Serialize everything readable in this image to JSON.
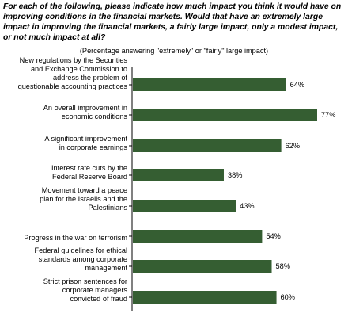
{
  "title": "For each of the following, please indicate how much impact you think it would have on improving conditions in the financial markets. Would that have an extremely large impact in improving the financial markets, a fairly large impact, only a modest impact, or not much impact at all?",
  "subtitle": "(Percentage answering \"extremely\" or \"fairly\" large impact)",
  "chart_data": {
    "type": "bar",
    "orientation": "horizontal",
    "categories": [
      [
        "New regulations by the Securities",
        "and Exchange Commission to",
        "address the problem of",
        "questionable accounting practices"
      ],
      [
        "An overall improvement in",
        "economic conditions"
      ],
      [
        "A significant improvement",
        "in corporate earnings"
      ],
      [
        "Interest rate cuts by the",
        "Federal Reserve Board"
      ],
      [
        "Movement toward a peace",
        "plan for the Israelis and the",
        "Palestinians"
      ],
      [
        "Progress in the war on terrorism"
      ],
      [
        "Federal guidelines for ethical",
        "standards among corporate",
        "management"
      ],
      [
        "Strict prison sentences for",
        "corporate managers",
        "convicted of fraud"
      ]
    ],
    "values": [
      64,
      77,
      62,
      38,
      43,
      54,
      58,
      60
    ],
    "value_labels": [
      "64%",
      "77%",
      "62%",
      "38%",
      "43%",
      "54%",
      "58%",
      "60%"
    ],
    "xlim": [
      0,
      77
    ],
    "bar_color": "#355e32",
    "axis_color": "#000000",
    "grid": false,
    "legend": "none"
  }
}
